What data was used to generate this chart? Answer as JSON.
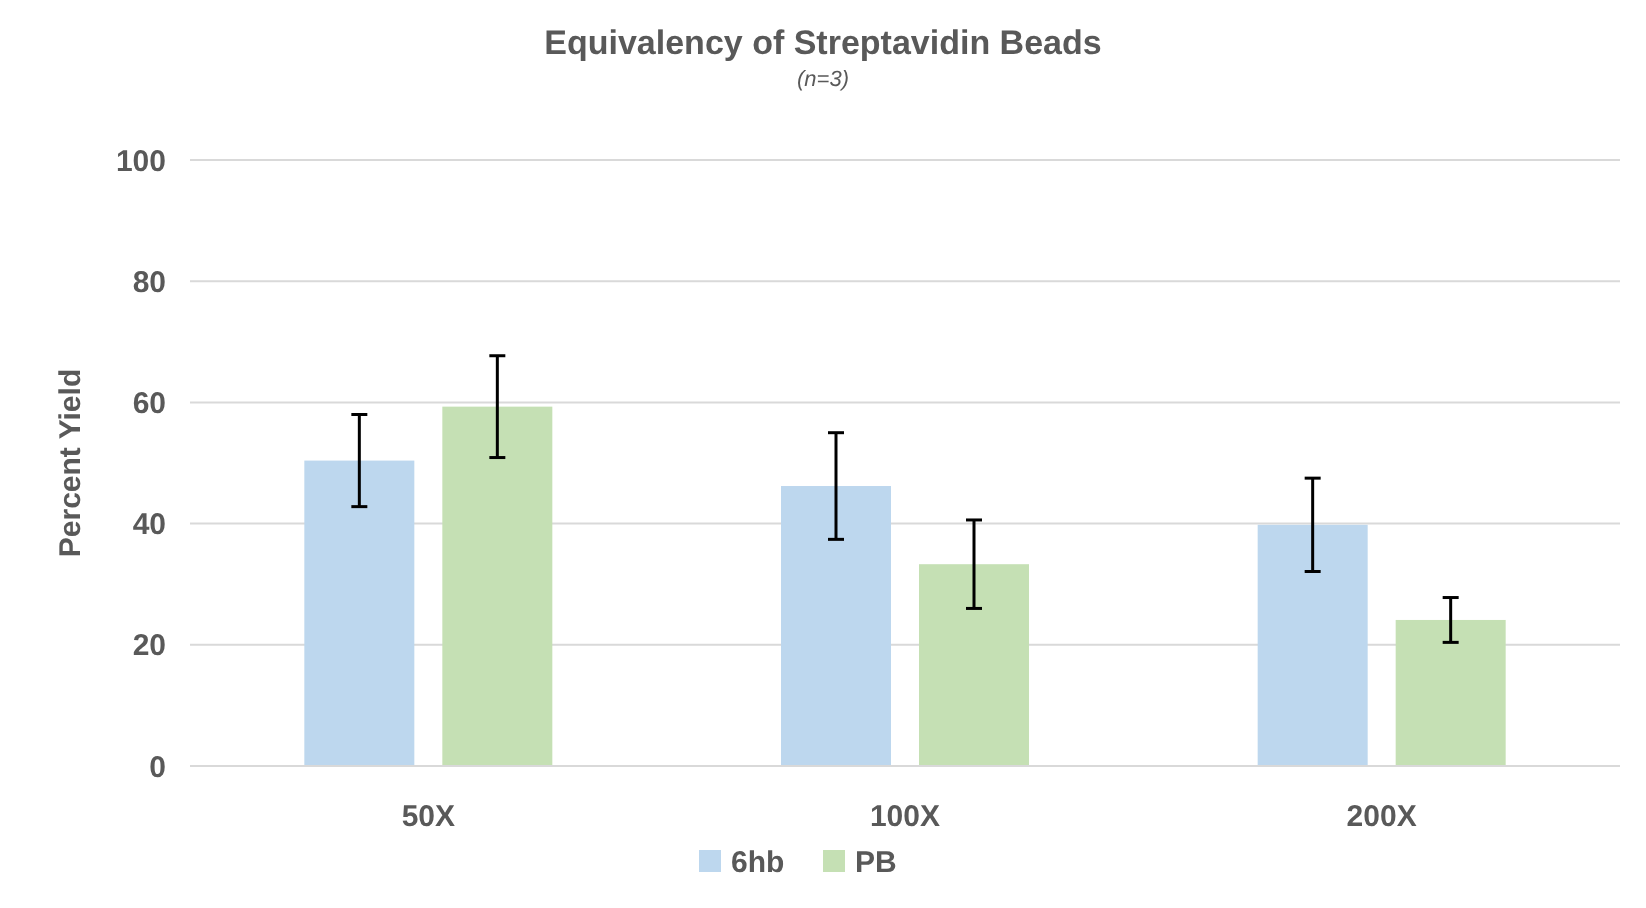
{
  "chart_data": {
    "type": "bar",
    "title": "Equivalency of Streptavidin Beads",
    "subtitle": "(n=3)",
    "ylabel": "Percent Yield",
    "categories": [
      "50X",
      "100X",
      "200X"
    ],
    "series": [
      {
        "name": "6hb",
        "color": "#bdd7ee",
        "values": [
          50.4,
          46.2,
          39.8
        ],
        "errors": [
          7.6,
          8.8,
          7.7
        ]
      },
      {
        "name": "PB",
        "color": "#c5e0b4",
        "values": [
          59.3,
          33.3,
          24.1
        ],
        "errors": [
          8.4,
          7.3,
          3.7
        ]
      }
    ],
    "ylim": [
      0,
      100
    ],
    "yticks": [
      0,
      20,
      40,
      60,
      80,
      100
    ],
    "grid": "y",
    "legend": "bottom"
  }
}
